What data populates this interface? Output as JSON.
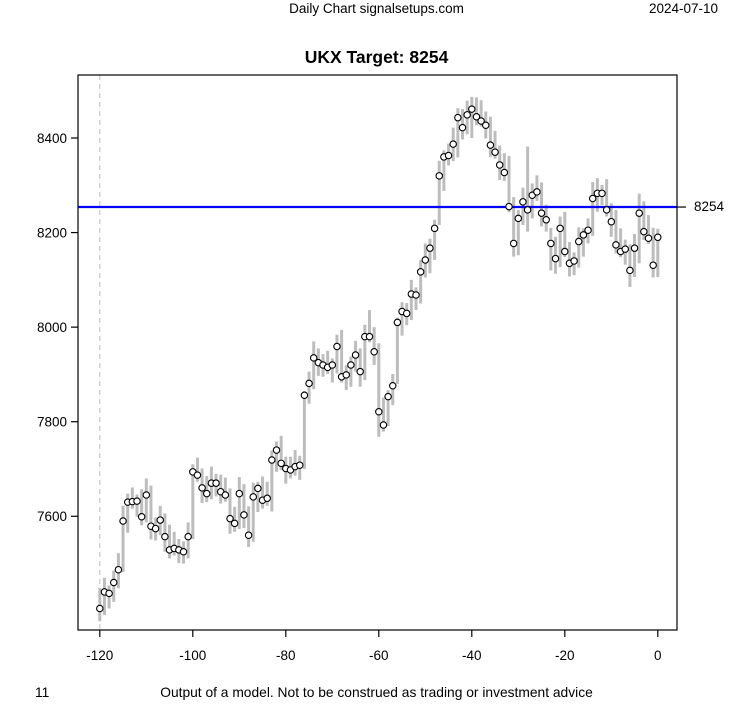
{
  "header": {
    "left_title": "Daily Chart signalsetups.com",
    "date": "2024-07-10"
  },
  "chart_title": "UKX Target: 8254",
  "footer": {
    "page_number": "11",
    "disclaimer": "Output of a model. Not to be construed as trading or investment advice"
  },
  "chart_data": {
    "type": "bar",
    "subtype": "high-low-close daily bars with open-circle close markers",
    "title": "UKX Target: 8254",
    "xlabel": "",
    "ylabel": "",
    "x_start": -120,
    "x_step": 1,
    "x_ticks": [
      -120,
      -100,
      -80,
      -60,
      -40,
      -20,
      0
    ],
    "y_ticks": [
      7600,
      7800,
      8000,
      8200,
      8400
    ],
    "xlim": [
      -125,
      5
    ],
    "ylim": [
      7360,
      8530
    ],
    "grid": false,
    "bar_color": "#bdbdbd",
    "marker": "open-circle",
    "dashed_vline_x": -120,
    "target_line": {
      "value": 8254,
      "color": "#0000ff",
      "label": "8254"
    },
    "series": [
      {
        "name": "close",
        "values": [
          7405,
          7440,
          7437,
          7460,
          7487,
          7590,
          7630,
          7631,
          7632,
          7599,
          7645,
          7579,
          7574,
          7592,
          7557,
          7529,
          7532,
          7529,
          7525,
          7557,
          7694,
          7687,
          7660,
          7648,
          7670,
          7670,
          7652,
          7645,
          7595,
          7585,
          7648,
          7603,
          7560,
          7641,
          7659,
          7634,
          7638,
          7719,
          7740,
          7712,
          7701,
          7698,
          7705,
          7708,
          7856,
          7881,
          7935,
          7925,
          7920,
          7915,
          7920,
          7959,
          7895,
          7899,
          7920,
          7941,
          7906,
          7980,
          7980,
          7948,
          7821,
          7793,
          7853,
          7876,
          8010,
          8033,
          8029,
          8070,
          8068,
          8117,
          8142,
          8167,
          8209,
          8320,
          8360,
          8363,
          8387,
          8443,
          8422,
          8449,
          8461,
          8445,
          8436,
          8427,
          8385,
          8370,
          8343,
          8327,
          8255,
          8177,
          8230,
          8265,
          8248,
          8279,
          8286,
          8241,
          8227,
          8177,
          8145,
          8209,
          8160,
          8135,
          8140,
          8181,
          8195,
          8205,
          8272,
          8283,
          8283,
          8248,
          8223,
          8174,
          8160,
          8165,
          8120,
          8167,
          8241,
          8202,
          8188,
          8131,
          8190
        ]
      },
      {
        "name": "high",
        "values": [
          7448,
          7470,
          7454,
          7485,
          7522,
          7622,
          7648,
          7661,
          7646,
          7657,
          7680,
          7665,
          7597,
          7622,
          7606,
          7582,
          7567,
          7552,
          7547,
          7587,
          7710,
          7724,
          7701,
          7685,
          7705,
          7690,
          7688,
          7682,
          7659,
          7620,
          7683,
          7668,
          7621,
          7671,
          7673,
          7684,
          7673,
          7739,
          7758,
          7770,
          7726,
          7726,
          7740,
          7728,
          7865,
          7906,
          7970,
          7955,
          7943,
          7950,
          7934,
          7984,
          7994,
          7919,
          7938,
          7971,
          7955,
          8005,
          8036,
          8000,
          7966,
          7851,
          7867,
          7901,
          8020,
          8053,
          8051,
          8100,
          8084,
          8142,
          8177,
          8187,
          8227,
          8352,
          8374,
          8388,
          8422,
          8463,
          8461,
          8479,
          8487,
          8486,
          8480,
          8456,
          8445,
          8415,
          8384,
          8368,
          8362,
          8275,
          8248,
          8295,
          8382,
          8304,
          8321,
          8306,
          8259,
          8210,
          8191,
          8234,
          8244,
          8180,
          8158,
          8211,
          8209,
          8230,
          8307,
          8315,
          8301,
          8313,
          8262,
          8248,
          8209,
          8185,
          8175,
          8197,
          8282,
          8266,
          8237,
          8210,
          8208
        ]
      },
      {
        "name": "low",
        "values": [
          7378,
          7391,
          7405,
          7419,
          7448,
          7482,
          7565,
          7616,
          7599,
          7581,
          7587,
          7551,
          7549,
          7560,
          7525,
          7511,
          7517,
          7501,
          7500,
          7511,
          7552,
          7673,
          7628,
          7630,
          7636,
          7642,
          7627,
          7631,
          7563,
          7567,
          7573,
          7575,
          7535,
          7546,
          7609,
          7616,
          7622,
          7610,
          7694,
          7698,
          7669,
          7680,
          7686,
          7677,
          7700,
          7838,
          7869,
          7897,
          7895,
          7901,
          7883,
          7902,
          7883,
          7867,
          7874,
          7906,
          7874,
          7888,
          7968,
          7920,
          7768,
          7779,
          7791,
          7835,
          7880,
          7982,
          8004,
          8015,
          8036,
          8050,
          8105,
          8114,
          8142,
          8216,
          8288,
          8342,
          8351,
          8359,
          8397,
          8408,
          8400,
          8427,
          8424,
          8399,
          8360,
          8356,
          8311,
          8309,
          8243,
          8149,
          8152,
          8216,
          8202,
          8230,
          8267,
          8213,
          8202,
          8120,
          8113,
          8127,
          8148,
          8107,
          8110,
          8126,
          8149,
          8177,
          8193,
          8244,
          8258,
          8234,
          8191,
          8156,
          8148,
          8132,
          8085,
          8106,
          8135,
          8184,
          8176,
          8105,
          8106
        ]
      }
    ]
  }
}
